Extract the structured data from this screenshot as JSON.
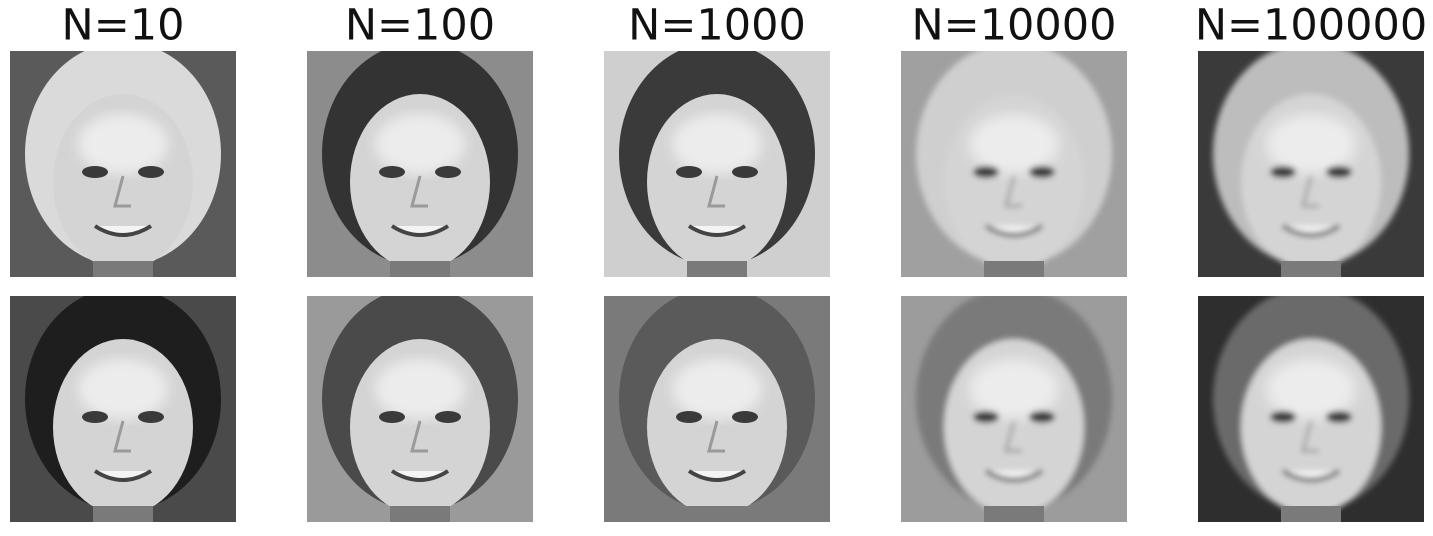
{
  "figure": {
    "titles": [
      "N=10",
      "N=100",
      "N=1000",
      "N=10000",
      "N=100000"
    ]
  }
}
